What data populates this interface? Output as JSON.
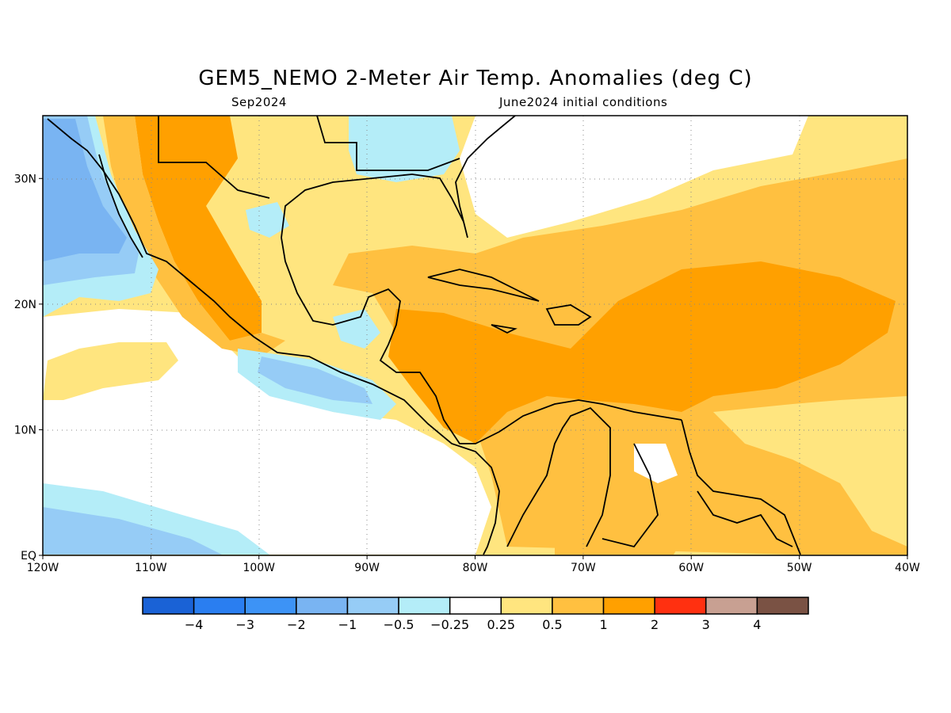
{
  "title": "GEM5_NEMO 2-Meter Air Temp. Anomalies (deg C)",
  "subtitle_left": "Sep2024",
  "subtitle_right": "June2024 initial conditions",
  "map": {
    "lon_range": [
      -120,
      -40
    ],
    "lat_range": [
      0,
      35
    ],
    "x_ticks": [
      "120W",
      "110W",
      "100W",
      "90W",
      "80W",
      "70W",
      "60W",
      "50W",
      "40W"
    ],
    "y_ticks": [
      "EQ",
      "10N",
      "20N",
      "30N"
    ],
    "grid": "dotted"
  },
  "colorbar": {
    "colors": [
      "#1a62d6",
      "#2a7ef0",
      "#3d93f6",
      "#79b4f2",
      "#96ccf6",
      "#b4edf8",
      "#ffffff",
      "#ffe57f",
      "#ffc040",
      "#ffa000",
      "#ff3010",
      "#c8a092",
      "#7a5244"
    ],
    "labels": [
      "−4",
      "−3",
      "−2",
      "−1",
      "−0.5",
      "−0.25",
      "0.25",
      "0.5",
      "1",
      "2",
      "3",
      "4"
    ]
  }
}
